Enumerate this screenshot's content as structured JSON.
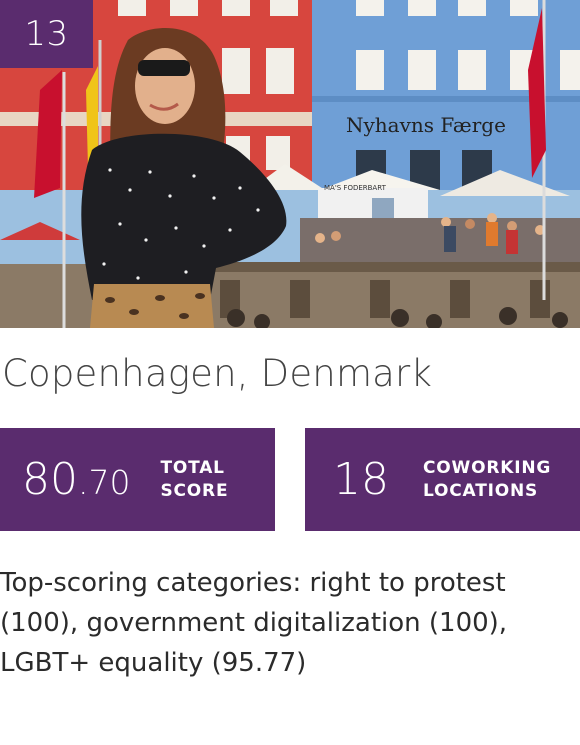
{
  "rank": "13",
  "city": "Copenhagen, Denmark",
  "hero": {
    "shop_sign": "Nyhavns Færge",
    "booth_sign": "MA'S FODERBART"
  },
  "stats": {
    "total_score": {
      "integer": "80",
      "decimal": ".70",
      "label_line1": "TOTAL",
      "label_line2": "SCORE"
    },
    "coworking": {
      "value": "18",
      "label_line1": "COWORKING",
      "label_line2": "LOCATIONS"
    }
  },
  "description": "Top-scoring categories: right to protest (100), government digitalization (100), LGBT+ equality (95.77)",
  "colors": {
    "accent": "#5a2c6e",
    "text": "#2b2b2b",
    "title": "#444444"
  }
}
